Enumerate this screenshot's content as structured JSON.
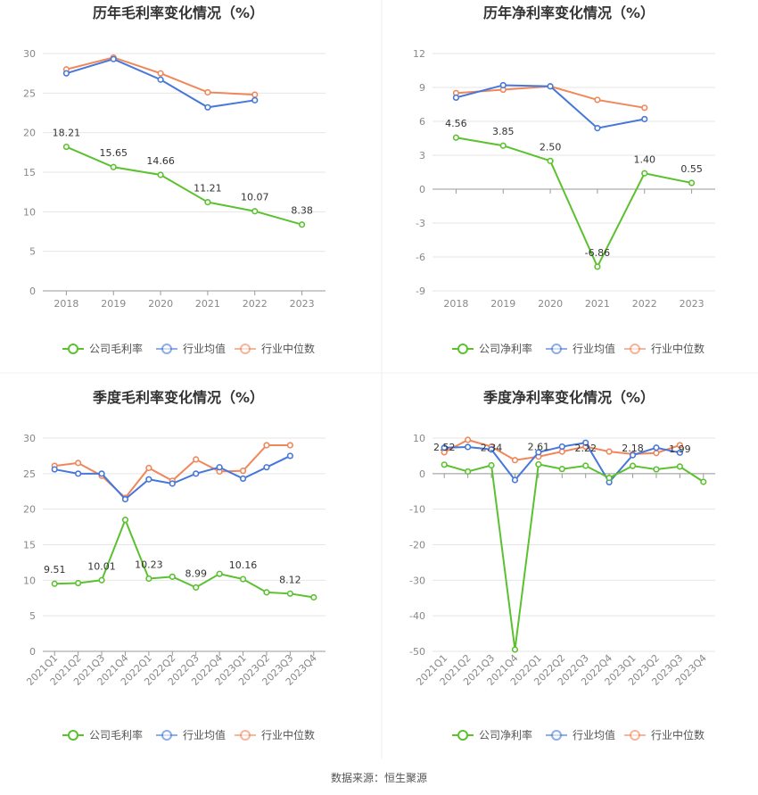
{
  "colors": {
    "company": "#5bc12f",
    "avg": "#4677d9",
    "median": "#f0875a",
    "grid": "#e6e6e6",
    "axis": "#999999"
  },
  "source": "数据来源：恒生聚源",
  "chart_data": [
    {
      "type": "line",
      "title": "历年毛利率变化情况（%）",
      "categories": [
        "2018",
        "2019",
        "2020",
        "2021",
        "2022",
        "2023"
      ],
      "ylim": [
        0,
        30
      ],
      "yticks": [
        0,
        5,
        10,
        15,
        20,
        25,
        30
      ],
      "legend": "bottom",
      "series": [
        {
          "name": "公司毛利率",
          "key": "company",
          "values": [
            18.21,
            15.65,
            14.66,
            11.21,
            10.07,
            8.38
          ],
          "labels": [
            "18.21",
            "15.65",
            "14.66",
            "11.21",
            "10.07",
            "8.38"
          ]
        },
        {
          "name": "行业均值",
          "key": "avg",
          "values": [
            27.5,
            29.3,
            26.7,
            23.2,
            24.1,
            null
          ]
        },
        {
          "name": "行业中位数",
          "key": "median",
          "values": [
            28.0,
            29.5,
            27.5,
            25.1,
            24.8,
            null
          ]
        }
      ]
    },
    {
      "type": "line",
      "title": "历年净利率变化情况（%）",
      "categories": [
        "2018",
        "2019",
        "2020",
        "2021",
        "2022",
        "2023"
      ],
      "ylim": [
        -9,
        12
      ],
      "yticks": [
        -9,
        -6,
        -3,
        0,
        3,
        6,
        9,
        12
      ],
      "legend": "bottom",
      "series": [
        {
          "name": "公司净利率",
          "key": "company",
          "values": [
            4.56,
            3.85,
            2.5,
            -6.86,
            1.4,
            0.55
          ],
          "labels": [
            "4.56",
            "3.85",
            "2.50",
            "-6.86",
            "1.40",
            "0.55"
          ]
        },
        {
          "name": "行业均值",
          "key": "avg",
          "values": [
            8.1,
            9.2,
            9.1,
            5.4,
            6.2,
            null
          ]
        },
        {
          "name": "行业中位数",
          "key": "median",
          "values": [
            8.5,
            8.8,
            9.1,
            7.9,
            7.2,
            null
          ]
        }
      ]
    },
    {
      "type": "line",
      "title": "季度毛利率变化情况（%）",
      "categories": [
        "2021Q1",
        "2021Q2",
        "2021Q3",
        "2021Q4",
        "2022Q1",
        "2022Q2",
        "2022Q3",
        "2022Q4",
        "2023Q1",
        "2023Q2",
        "2023Q3",
        "2023Q4"
      ],
      "ylim": [
        0,
        30
      ],
      "yticks": [
        0,
        5,
        10,
        15,
        20,
        25,
        30
      ],
      "legend": "bottom",
      "series": [
        {
          "name": "公司毛利率",
          "key": "company",
          "values": [
            9.51,
            9.6,
            10.01,
            18.5,
            10.23,
            10.5,
            8.99,
            10.9,
            10.16,
            8.3,
            8.12,
            7.6
          ],
          "labels": [
            "9.51",
            "",
            "10.01",
            "",
            "10.23",
            "",
            "8.99",
            "",
            "10.16",
            "",
            "8.12",
            ""
          ]
        },
        {
          "name": "行业均值",
          "key": "avg",
          "values": [
            25.6,
            25.0,
            25.0,
            21.4,
            24.2,
            23.6,
            25.0,
            25.9,
            24.3,
            25.9,
            27.5,
            null
          ]
        },
        {
          "name": "行业中位数",
          "key": "median",
          "values": [
            26.1,
            26.5,
            24.7,
            21.6,
            25.8,
            24.0,
            27.0,
            25.3,
            25.4,
            29.0,
            29.0,
            null
          ]
        }
      ]
    },
    {
      "type": "line",
      "title": "季度净利率变化情况（%）",
      "categories": [
        "2021Q1",
        "2021Q2",
        "2021Q3",
        "2021Q4",
        "2022Q1",
        "2022Q2",
        "2022Q3",
        "2022Q4",
        "2023Q1",
        "2023Q2",
        "2023Q3",
        "2023Q4"
      ],
      "ylim": [
        -50,
        10
      ],
      "yticks": [
        -50,
        -40,
        -30,
        -20,
        -10,
        0,
        10
      ],
      "legend": "bottom",
      "series": [
        {
          "name": "公司净利率",
          "key": "company",
          "values": [
            2.52,
            0.6,
            2.34,
            -49.5,
            2.61,
            1.3,
            2.22,
            -1.2,
            2.18,
            1.2,
            1.99,
            -2.3
          ],
          "labels": [
            "2.52",
            "",
            "2.34",
            "",
            "2.61",
            "",
            "2.22",
            "",
            "2.18",
            "",
            "1.99",
            ""
          ]
        },
        {
          "name": "行业均值",
          "key": "avg",
          "values": [
            7.3,
            7.5,
            6.8,
            -1.8,
            6.0,
            7.6,
            8.7,
            -2.4,
            5.2,
            7.3,
            5.9,
            null
          ]
        },
        {
          "name": "行业中位数",
          "key": "median",
          "values": [
            6.0,
            9.5,
            7.6,
            3.8,
            4.8,
            6.2,
            7.6,
            6.2,
            5.5,
            5.8,
            8.0,
            null
          ]
        }
      ]
    }
  ]
}
